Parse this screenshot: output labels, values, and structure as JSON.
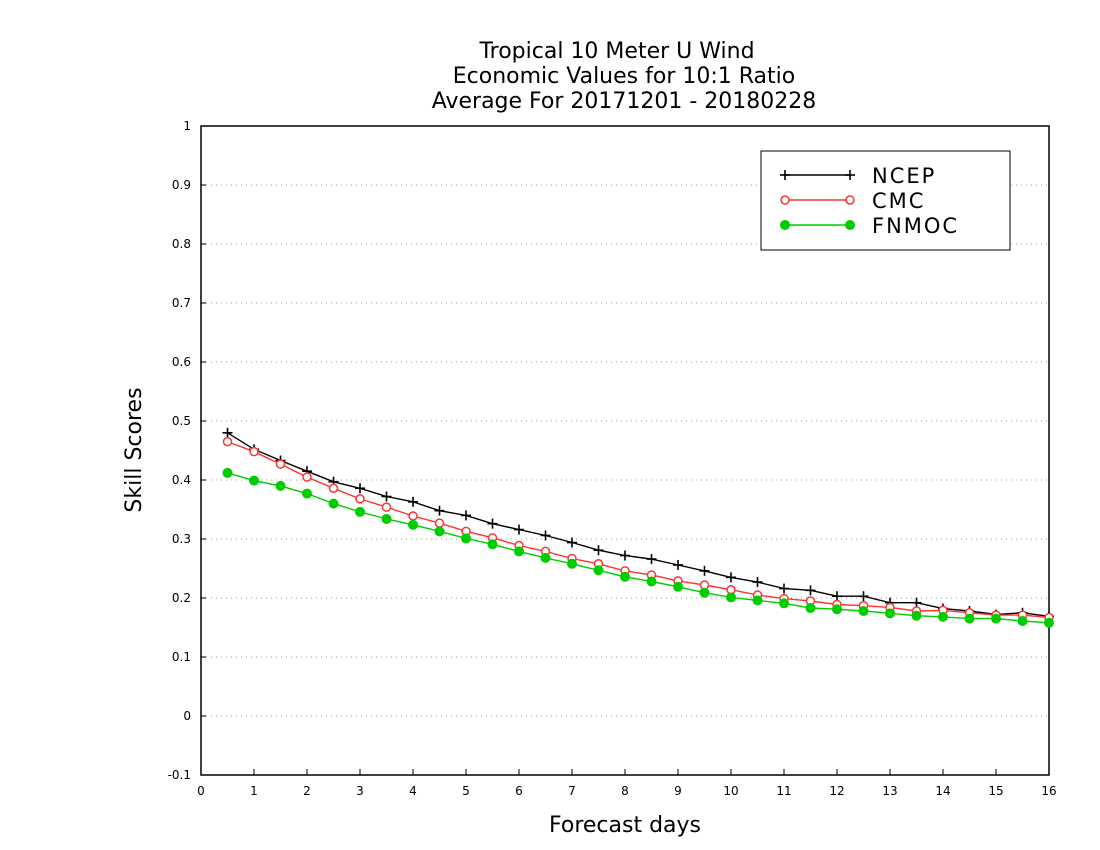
{
  "chart_data": {
    "type": "line",
    "title_lines": [
      "Tropical 10 Meter U Wind",
      "Economic Values for 10:1 Ratio",
      "Average For 20171201 - 20180228"
    ],
    "xlabel": "Forecast days",
    "ylabel": "Skill Scores",
    "xlim": [
      0,
      16
    ],
    "ylim": [
      -0.1,
      1
    ],
    "xticks": [
      "0",
      "1",
      "2",
      "3",
      "4",
      "5",
      "6",
      "7",
      "8",
      "9",
      "10",
      "11",
      "12",
      "13",
      "14",
      "15",
      "16"
    ],
    "yticks": [
      "-0.1",
      "0",
      "0.1",
      "0.2",
      "0.3",
      "0.4",
      "0.5",
      "0.6",
      "0.7",
      "0.8",
      "0.9",
      "1"
    ],
    "grid": "horizontal dotted",
    "legend_position": "top-right",
    "x": [
      0.5,
      1,
      1.5,
      2,
      2.5,
      3,
      3.5,
      4,
      4.5,
      5,
      5.5,
      6,
      6.5,
      7,
      7.5,
      8,
      8.5,
      9,
      9.5,
      10,
      10.5,
      11,
      11.5,
      12,
      12.5,
      13,
      13.5,
      14,
      14.5,
      15,
      15.5,
      16
    ],
    "series": [
      {
        "name": "NCEP",
        "color": "#000000",
        "marker": "plus",
        "values": [
          0.48,
          0.452,
          0.433,
          0.415,
          0.397,
          0.386,
          0.372,
          0.363,
          0.348,
          0.34,
          0.326,
          0.316,
          0.306,
          0.294,
          0.281,
          0.272,
          0.266,
          0.256,
          0.246,
          0.235,
          0.227,
          0.216,
          0.213,
          0.203,
          0.203,
          0.192,
          0.192,
          0.182,
          0.178,
          0.172,
          0.175,
          0.169
        ]
      },
      {
        "name": "CMC",
        "color": "#ff3333",
        "marker": "open-circle",
        "values": [
          0.465,
          0.448,
          0.427,
          0.405,
          0.386,
          0.368,
          0.354,
          0.339,
          0.327,
          0.313,
          0.302,
          0.289,
          0.279,
          0.267,
          0.258,
          0.246,
          0.239,
          0.229,
          0.222,
          0.214,
          0.205,
          0.199,
          0.195,
          0.189,
          0.187,
          0.184,
          0.178,
          0.179,
          0.175,
          0.171,
          0.171,
          0.167
        ]
      },
      {
        "name": "FNMOC",
        "color": "#00cc00",
        "marker": "filled-circle",
        "values": [
          0.412,
          0.399,
          0.39,
          0.377,
          0.36,
          0.346,
          0.334,
          0.324,
          0.313,
          0.301,
          0.291,
          0.279,
          0.268,
          0.258,
          0.247,
          0.236,
          0.228,
          0.219,
          0.209,
          0.201,
          0.196,
          0.191,
          0.183,
          0.181,
          0.178,
          0.174,
          0.17,
          0.168,
          0.165,
          0.165,
          0.161,
          0.158
        ]
      }
    ]
  }
}
